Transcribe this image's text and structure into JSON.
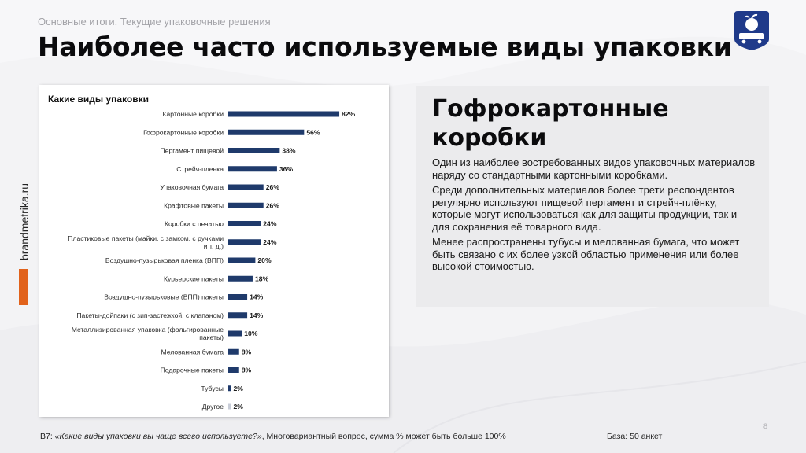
{
  "header": {
    "subtitle": "Основные итоги. Текущие упаковочные решения",
    "title": "Наиболее часто используемые виды упаковки"
  },
  "side": {
    "brand": "brandmetrika.ru",
    "accent_color": "#e1621b"
  },
  "chart_data": {
    "type": "bar",
    "orientation": "horizontal",
    "title": "Какие виды упаковки",
    "bar_color": "#1f3a6b",
    "value_suffix": "%",
    "categories": [
      "Картонные коробки",
      "Гофрокартонные коробки",
      "Пергамент пищевой",
      "Стрейч-пленка",
      "Упаковочная бумага",
      "Крафтовые пакеты",
      "Коробки с печатью",
      "Пластиковые пакеты (майки, с замком, с ручками и т. д.)",
      "Воздушно-пузырьковая пленка (ВПП)",
      "Курьерские пакеты",
      "Воздушно-пузырьковые (ВПП) пакеты",
      "Пакеты-дойпаки (с зип-застежкой, с клапаном)",
      "Металлизированная упаковка (фольгированные пакеты)",
      "Мелованная бумага",
      "Подарочные пакеты",
      "Тубусы",
      "Другое"
    ],
    "category_lines": [
      [
        "Картонные коробки"
      ],
      [
        "Гофрокартонные коробки"
      ],
      [
        "Пергамент пищевой"
      ],
      [
        "Стрейч-пленка"
      ],
      [
        "Упаковочная бумага"
      ],
      [
        "Крафтовые пакеты"
      ],
      [
        "Коробки с печатью"
      ],
      [
        "Пластиковые пакеты (майки, с замком, с ручками",
        "и т. д.)"
      ],
      [
        "Воздушно-пузырьковая пленка (ВПП)"
      ],
      [
        "Курьерские пакеты"
      ],
      [
        "Воздушно-пузырьковые (ВПП) пакеты"
      ],
      [
        "Пакеты-дойпаки (с зип-застежкой, с клапаном)"
      ],
      [
        "Металлизированная упаковка (фольгированные",
        "пакеты)"
      ],
      [
        "Мелованная бумага"
      ],
      [
        "Подарочные пакеты"
      ],
      [
        "Тубусы"
      ],
      [
        "Другое"
      ]
    ],
    "values": [
      82,
      56,
      38,
      36,
      26,
      26,
      24,
      24,
      20,
      18,
      14,
      14,
      10,
      8,
      8,
      2,
      2
    ],
    "xlim": [
      0,
      100
    ],
    "grid": false,
    "legend": "none"
  },
  "info": {
    "title": "Гофрокартонные коробки",
    "paragraphs": [
      "Один из наиболее востребованных видов упаковочных материалов наряду со стандартными картонными коробками.",
      "Среди дополнительных материалов более трети респондентов регулярно используют пищевой пергамент и стрейч-плёнку, которые могут использоваться как для защиты продукции, так и для сохранения её товарного вида.",
      "Менее распространены тубусы и мелованная бумага, что может быть связано с их более узкой областью применения или более высокой стоимостью."
    ]
  },
  "footer": {
    "question_prefix": "B7: ",
    "question": "«Какие виды упаковки вы чаще всего используете?»",
    "question_suffix": ", Многовариантный вопрос, сумма % может быть больше 100%",
    "base": "База: 50 анкет",
    "page_number": "8"
  },
  "logo": {
    "icon": "apple-cart-logo-icon",
    "color": "#1f3a8a"
  }
}
